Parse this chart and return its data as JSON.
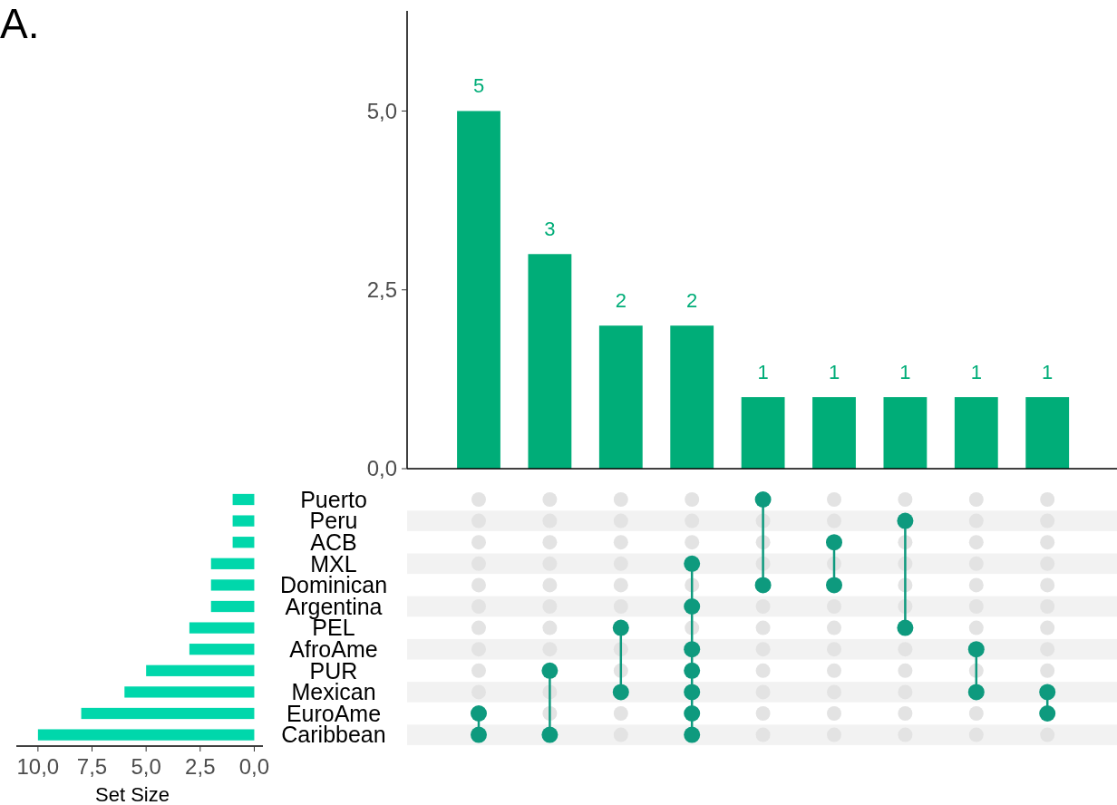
{
  "chart_data": [
    {
      "type": "bar",
      "categories": [
        null,
        null,
        null,
        null,
        null,
        null,
        null,
        null,
        null
      ],
      "values": [
        5,
        3,
        2,
        2,
        1,
        1,
        1,
        1,
        1
      ],
      "color": "#00ad78",
      "ylim": [
        0,
        6.4
      ],
      "yticks": [
        {
          "value": 0,
          "label": "0,0"
        },
        {
          "value": 2.5,
          "label": "2,5"
        },
        {
          "value": 5,
          "label": "5,0"
        }
      ],
      "data_labels": true,
      "grid": false
    },
    {
      "type": "bar",
      "title": "A.",
      "orientation": "horizontal",
      "xlabel": "Set Size",
      "categories": [
        "Puerto",
        "Peru",
        "ACB",
        "MXL",
        "Dominican",
        "Argentina",
        "PEL",
        "AfroAme",
        "PUR",
        "Mexican",
        "EuroAme",
        "Caribbean"
      ],
      "values": [
        1,
        1,
        1,
        2,
        2,
        2,
        3,
        3,
        5,
        6,
        8,
        10
      ],
      "color": "#00d7ab",
      "xlim": [
        11,
        -0.4
      ],
      "xticks": [
        {
          "value": 10,
          "label": "10,0"
        },
        {
          "value": 7.5,
          "label": "7,5"
        },
        {
          "value": 5,
          "label": "5,0"
        },
        {
          "value": 2.5,
          "label": "2,5"
        },
        {
          "value": 0,
          "label": "0,0"
        }
      ],
      "grid": false
    },
    {
      "type": "other",
      "color": "#0e9a7e",
      "cells": [
        [
          false,
          false,
          false,
          false,
          true,
          false,
          false,
          false,
          false
        ],
        [
          false,
          false,
          false,
          false,
          false,
          false,
          true,
          false,
          false
        ],
        [
          false,
          false,
          false,
          false,
          false,
          true,
          false,
          false,
          false
        ],
        [
          false,
          false,
          false,
          true,
          false,
          false,
          false,
          false,
          false
        ],
        [
          false,
          false,
          false,
          false,
          true,
          true,
          false,
          false,
          false
        ],
        [
          false,
          false,
          false,
          true,
          false,
          false,
          false,
          false,
          false
        ],
        [
          false,
          false,
          true,
          false,
          false,
          false,
          true,
          false,
          false
        ],
        [
          false,
          false,
          false,
          true,
          false,
          false,
          false,
          true,
          false
        ],
        [
          false,
          true,
          false,
          true,
          false,
          false,
          false,
          false,
          false
        ],
        [
          false,
          false,
          true,
          true,
          false,
          false,
          false,
          true,
          true
        ],
        [
          true,
          false,
          false,
          true,
          false,
          false,
          false,
          false,
          true
        ],
        [
          true,
          true,
          false,
          true,
          false,
          false,
          false,
          false,
          false
        ]
      ]
    }
  ]
}
